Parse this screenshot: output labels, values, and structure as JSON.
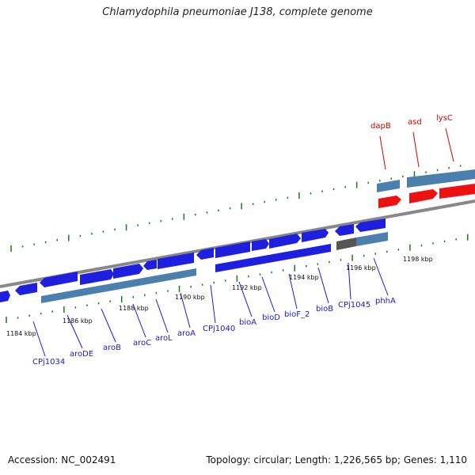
{
  "title": "Chlamydophila pneumoniae J138, complete genome",
  "footer": {
    "accession": "Accession: NC_002491",
    "topology": "Topology: circular; Length: 1,226,565 bp; Genes: 1,110"
  },
  "colors": {
    "cds_forward": "#1f1fe0",
    "cds_reverse": "#ee1111",
    "gene_bar": "#4a7fae",
    "pseudo_bar": "#555555",
    "backbone": "#888888",
    "tick": "#1a7a1a",
    "gene_label_blue": "#1a1ad6",
    "gene_label_red": "#d40000"
  },
  "scale_labels": [
    "1184 kbp",
    "1186 kbp",
    "1188 kbp",
    "1190 kbp",
    "1192 kbp",
    "1194 kbp",
    "1196 kbp",
    "1198 kbp"
  ],
  "genes_lower": [
    "CPj1034",
    "aroDE",
    "aroB",
    "aroC",
    "aroL",
    "aroA",
    "CPj1040",
    "bioA",
    "bioD",
    "bioF_2",
    "bioB",
    "CPj1045",
    "phhA"
  ],
  "genes_upper": [
    "dapB",
    "asd",
    "lysC"
  ]
}
